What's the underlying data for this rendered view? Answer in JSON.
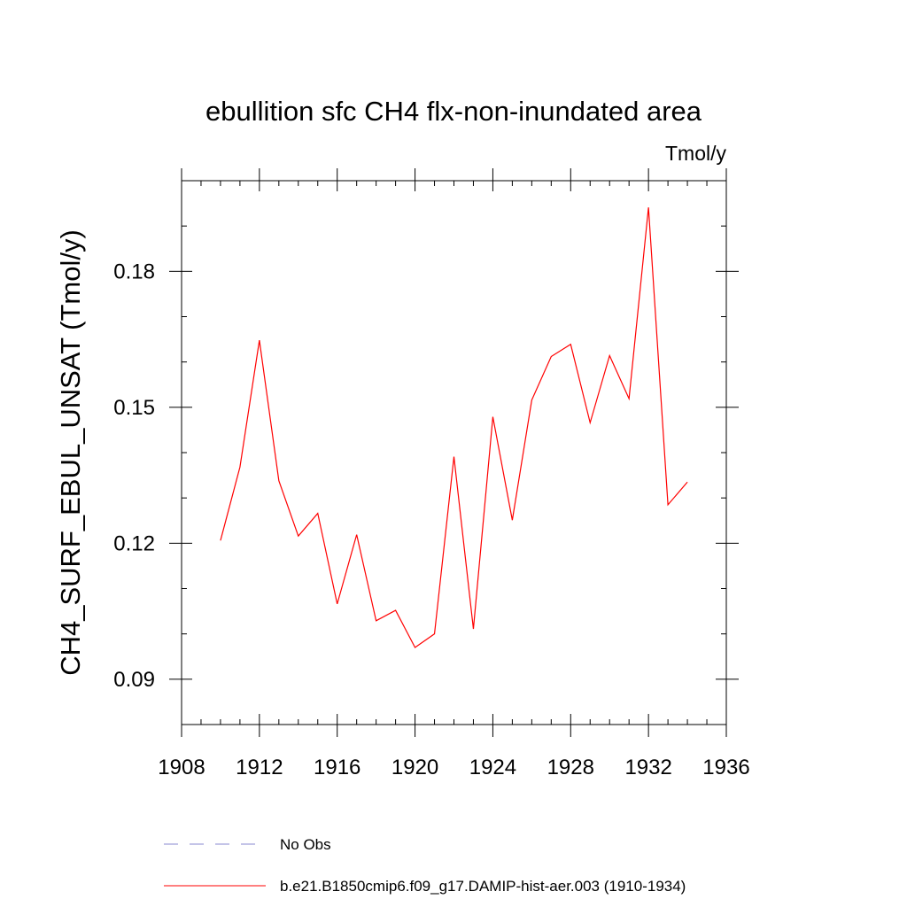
{
  "chart_data": {
    "type": "line",
    "title": "ebullition sfc CH4 flx-non-inundated area",
    "units_label": "Tmol/y",
    "ylabel": "CH4_SURF_EBUL_UNSAT  (Tmol/y)",
    "xlabel": "",
    "xlim": [
      1908,
      1936
    ],
    "ylim": [
      0.08,
      0.2
    ],
    "x_ticks": [
      1908,
      1912,
      1916,
      1920,
      1924,
      1928,
      1932,
      1936
    ],
    "x_tick_labels": [
      "1908",
      "1912",
      "1916",
      "1920",
      "1924",
      "1928",
      "1932",
      "1936"
    ],
    "y_ticks": [
      0.09,
      0.12,
      0.15,
      0.18
    ],
    "y_tick_labels": [
      "0.09",
      "0.12",
      "0.15",
      "0.18"
    ],
    "grid": false,
    "legend_position": "bottom",
    "series": [
      {
        "name": "b.e21.B1850cmip6.f09_g17.DAMIP-hist-aer.003 (1910-1934)",
        "color": "#ff0000",
        "style": "solid",
        "x": [
          1910,
          1911,
          1912,
          1913,
          1914,
          1915,
          1916,
          1917,
          1918,
          1919,
          1920,
          1921,
          1922,
          1923,
          1924,
          1925,
          1926,
          1927,
          1928,
          1929,
          1930,
          1931,
          1932,
          1933,
          1934
        ],
        "y": [
          0.1206,
          0.1368,
          0.1648,
          0.1338,
          0.1216,
          0.1266,
          0.1066,
          0.1219,
          0.1029,
          0.1052,
          0.097,
          0.1,
          0.1391,
          0.1011,
          0.1479,
          0.1251,
          0.1516,
          0.1612,
          0.1639,
          0.1466,
          0.1614,
          0.1519,
          0.1941,
          0.1285,
          0.1335
        ]
      }
    ],
    "legend": [
      {
        "label": "No Obs",
        "color": "#8a8ad0",
        "style": "dashed"
      },
      {
        "label": "b.e21.B1850cmip6.f09_g17.DAMIP-hist-aer.003 (1910-1934)",
        "color": "#ff0000",
        "style": "solid"
      }
    ]
  }
}
